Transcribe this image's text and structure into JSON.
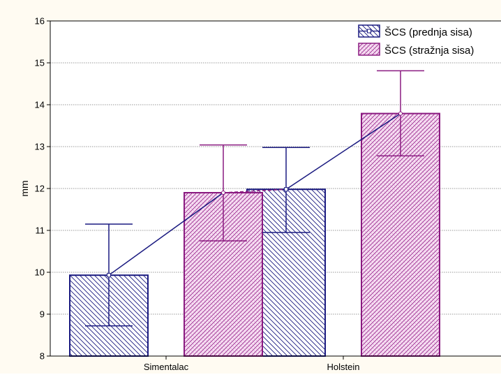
{
  "chart_data": {
    "type": "bar",
    "title": "",
    "xlabel": "",
    "ylabel": "mm",
    "categories": [
      "Simentalac",
      "Holstein"
    ],
    "ylim": [
      8,
      16
    ],
    "yticks": [
      8,
      9,
      10,
      11,
      12,
      13,
      14,
      15,
      16
    ],
    "grid": true,
    "legend_position": "top-right",
    "series": [
      {
        "name": "ŠCS (prednja sisa)",
        "values": [
          9.93,
          11.98
        ],
        "error_low": [
          8.72,
          10.95
        ],
        "error_high": [
          11.15,
          12.98
        ],
        "color": "#1a1a80",
        "line_style": "solid"
      },
      {
        "name": "ŠCS (stražnja sisa)",
        "values": [
          11.9,
          13.79
        ],
        "error_low": [
          10.75,
          12.78
        ],
        "error_high": [
          13.04,
          14.81
        ],
        "color": "#8a1a80",
        "line_style": "dashed"
      }
    ]
  }
}
